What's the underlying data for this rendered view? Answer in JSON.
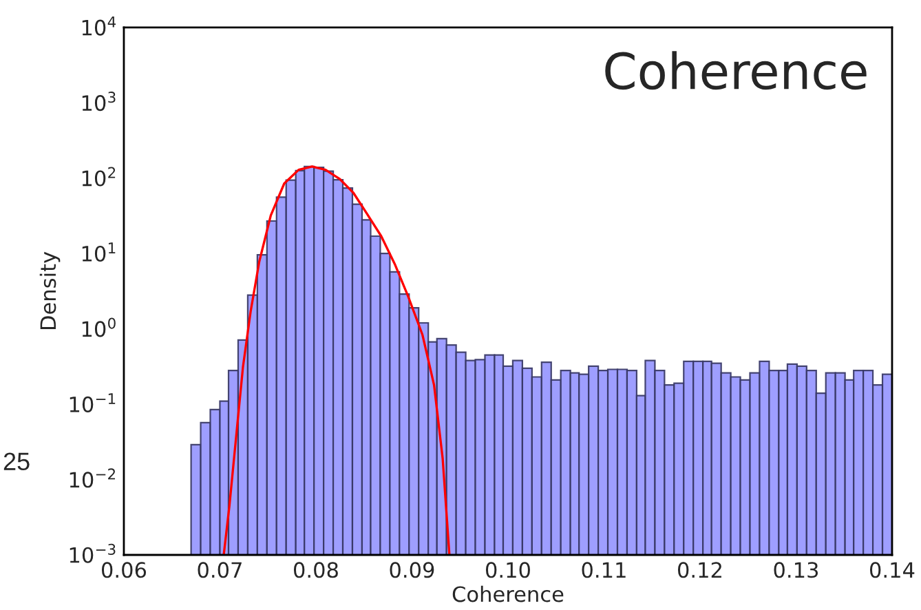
{
  "chart_data": {
    "type": "histogram",
    "title": "Coherence",
    "xlabel": "Coherence",
    "ylabel": "Density",
    "annotations": [
      "25"
    ],
    "log": "y",
    "grid": false,
    "legend": false,
    "xlim": [
      0.06,
      0.14
    ],
    "ylim": [
      0.001,
      10000
    ],
    "xticks": [
      {
        "value": 0.06,
        "label": "0.06"
      },
      {
        "value": 0.07,
        "label": "0.07"
      },
      {
        "value": 0.08,
        "label": "0.08"
      },
      {
        "value": 0.09,
        "label": "0.09"
      },
      {
        "value": 0.1,
        "label": "0.10"
      },
      {
        "value": 0.11,
        "label": "0.11"
      },
      {
        "value": 0.12,
        "label": "0.12"
      },
      {
        "value": 0.13,
        "label": "0.13"
      },
      {
        "value": 0.14,
        "label": "0.14"
      }
    ],
    "yticks": [
      {
        "value": 0.001,
        "label": "10$^{−3}$"
      },
      {
        "value": 0.01,
        "label": "10$^{−2}$"
      },
      {
        "value": 0.1,
        "label": "10$^{−1}$"
      },
      {
        "value": 1,
        "label": "10$^{0}$"
      },
      {
        "value": 10,
        "label": "10$^{1}$"
      },
      {
        "value": 100,
        "label": "10$^{2}$"
      },
      {
        "value": 1000,
        "label": "10$^{3}$"
      },
      {
        "value": 10000,
        "label": "10$^{4}$"
      }
    ],
    "color": "#9999ff",
    "bins": [
      0.067,
      0.068,
      0.069,
      0.07,
      0.0709,
      0.0719,
      0.0729,
      0.0739,
      0.0749,
      0.0759,
      0.0769,
      0.0779,
      0.0788,
      0.0798,
      0.0808,
      0.0818,
      0.0828,
      0.0838,
      0.0848,
      0.0857,
      0.0867,
      0.0877,
      0.0887,
      0.0897,
      0.0907,
      0.0917,
      0.0926,
      0.0936,
      0.0946,
      0.0956,
      0.0966,
      0.0976,
      0.0986,
      0.0995,
      0.1005,
      0.1015,
      0.1025,
      0.1035,
      0.1045,
      0.1055,
      0.1065,
      0.1074,
      0.1084,
      0.1094,
      0.1104,
      0.1114,
      0.1124,
      0.1134,
      0.1143,
      0.1153,
      0.1163,
      0.1173,
      0.1183,
      0.1193,
      0.1203,
      0.1212,
      0.1222,
      0.1232,
      0.1242,
      0.1252,
      0.1262,
      0.1272,
      0.1282,
      0.1291,
      0.1301,
      0.1311,
      0.1321,
      0.1331,
      0.1341,
      0.1351,
      0.136,
      0.137,
      0.138,
      0.139,
      0.14
    ],
    "values": [
      0.029,
      0.057,
      0.085,
      0.11,
      0.28,
      0.71,
      2.8,
      9.6,
      27,
      56,
      94,
      126,
      143,
      139,
      124,
      95,
      74,
      45,
      28,
      17,
      10,
      5.7,
      2.9,
      1.9,
      1.2,
      0.67,
      0.74,
      0.61,
      0.49,
      0.38,
      0.39,
      0.45,
      0.45,
      0.32,
      0.38,
      0.3,
      0.23,
      0.36,
      0.21,
      0.28,
      0.26,
      0.25,
      0.32,
      0.28,
      0.29,
      0.29,
      0.28,
      0.13,
      0.38,
      0.28,
      0.18,
      0.19,
      0.37,
      0.37,
      0.37,
      0.35,
      0.26,
      0.23,
      0.21,
      0.26,
      0.37,
      0.28,
      0.28,
      0.34,
      0.32,
      0.28,
      0.14,
      0.26,
      0.26,
      0.21,
      0.28,
      0.28,
      0.18,
      0.25
    ],
    "series": [
      {
        "type": "line",
        "color": "#ff0000",
        "x": [
          0.0704,
          0.071,
          0.0717,
          0.0724,
          0.0732,
          0.0741,
          0.0753,
          0.0767,
          0.0782,
          0.0796,
          0.081,
          0.0825,
          0.0839,
          0.0853,
          0.0868,
          0.0882,
          0.0896,
          0.0911,
          0.0923,
          0.0932,
          0.0939
        ],
        "values": [
          0.001,
          0.0046,
          0.038,
          0.31,
          1.7,
          7.8,
          32,
          85,
          129,
          143,
          129,
          97,
          64,
          34,
          17,
          7.3,
          2.7,
          0.83,
          0.18,
          0.019,
          0.001
        ]
      }
    ]
  }
}
